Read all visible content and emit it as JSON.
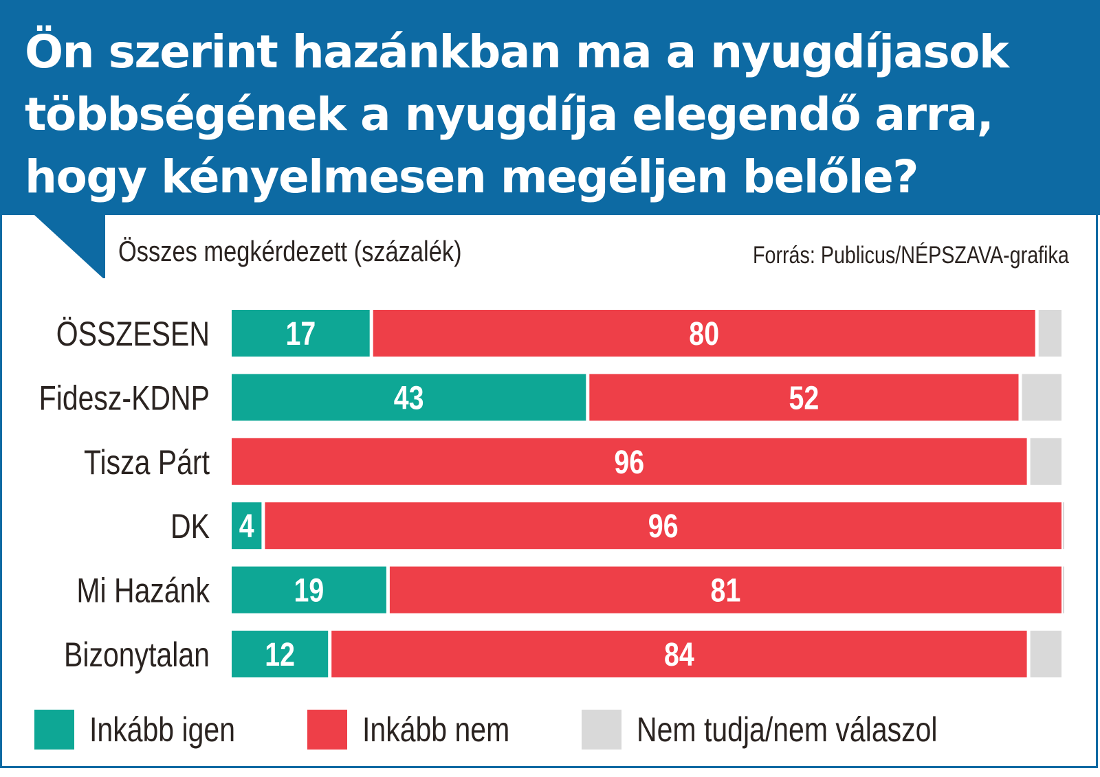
{
  "header": {
    "title": "Ön szerint hazánkban ma a nyugdíjasok többségének a nyugdíja elegendő arra, hogy kényelmesen megéljen belőle?"
  },
  "subtitle": "Összes megkérdezett (százalék)",
  "source": "Forrás: Publicus/NÉPSZAVA-grafika",
  "colors": {
    "header_bg": "#0d6aa3",
    "igen": "#0ea795",
    "nem": "#ee3f48",
    "nem_tudja": "#d9d9d9"
  },
  "chart_data": {
    "type": "bar",
    "orientation": "horizontal",
    "stacked": true,
    "title": "Ön szerint hazánkban ma a nyugdíjasok többségének a nyugdíja elegendő arra, hogy kényelmesen megéljen belőle?",
    "subtitle": "Összes megkérdezett (százalék)",
    "xlabel": "",
    "ylabel": "",
    "xlim": [
      0,
      100
    ],
    "grid": false,
    "legend_position": "bottom",
    "categories": [
      "ÖSSZESEN",
      "Fidesz-KDNP",
      "Tisza Párt",
      "DK",
      "Mi Hazánk",
      "Bizonytalan"
    ],
    "series": [
      {
        "name": "Inkább igen",
        "color": "#0ea795",
        "values": [
          17,
          43,
          0,
          4,
          19,
          12
        ]
      },
      {
        "name": "Inkább nem",
        "color": "#ee3f48",
        "values": [
          80,
          52,
          96,
          96,
          81,
          84
        ]
      },
      {
        "name": "Nem tudja/nem válaszol",
        "color": "#d9d9d9",
        "values": [
          3,
          5,
          4,
          0,
          0,
          4
        ]
      }
    ]
  },
  "legend": [
    {
      "label": "Inkább igen",
      "color": "#0ea795"
    },
    {
      "label": "Inkább nem",
      "color": "#ee3f48"
    },
    {
      "label": "Nem tudja/nem válaszol",
      "color": "#d9d9d9"
    }
  ]
}
